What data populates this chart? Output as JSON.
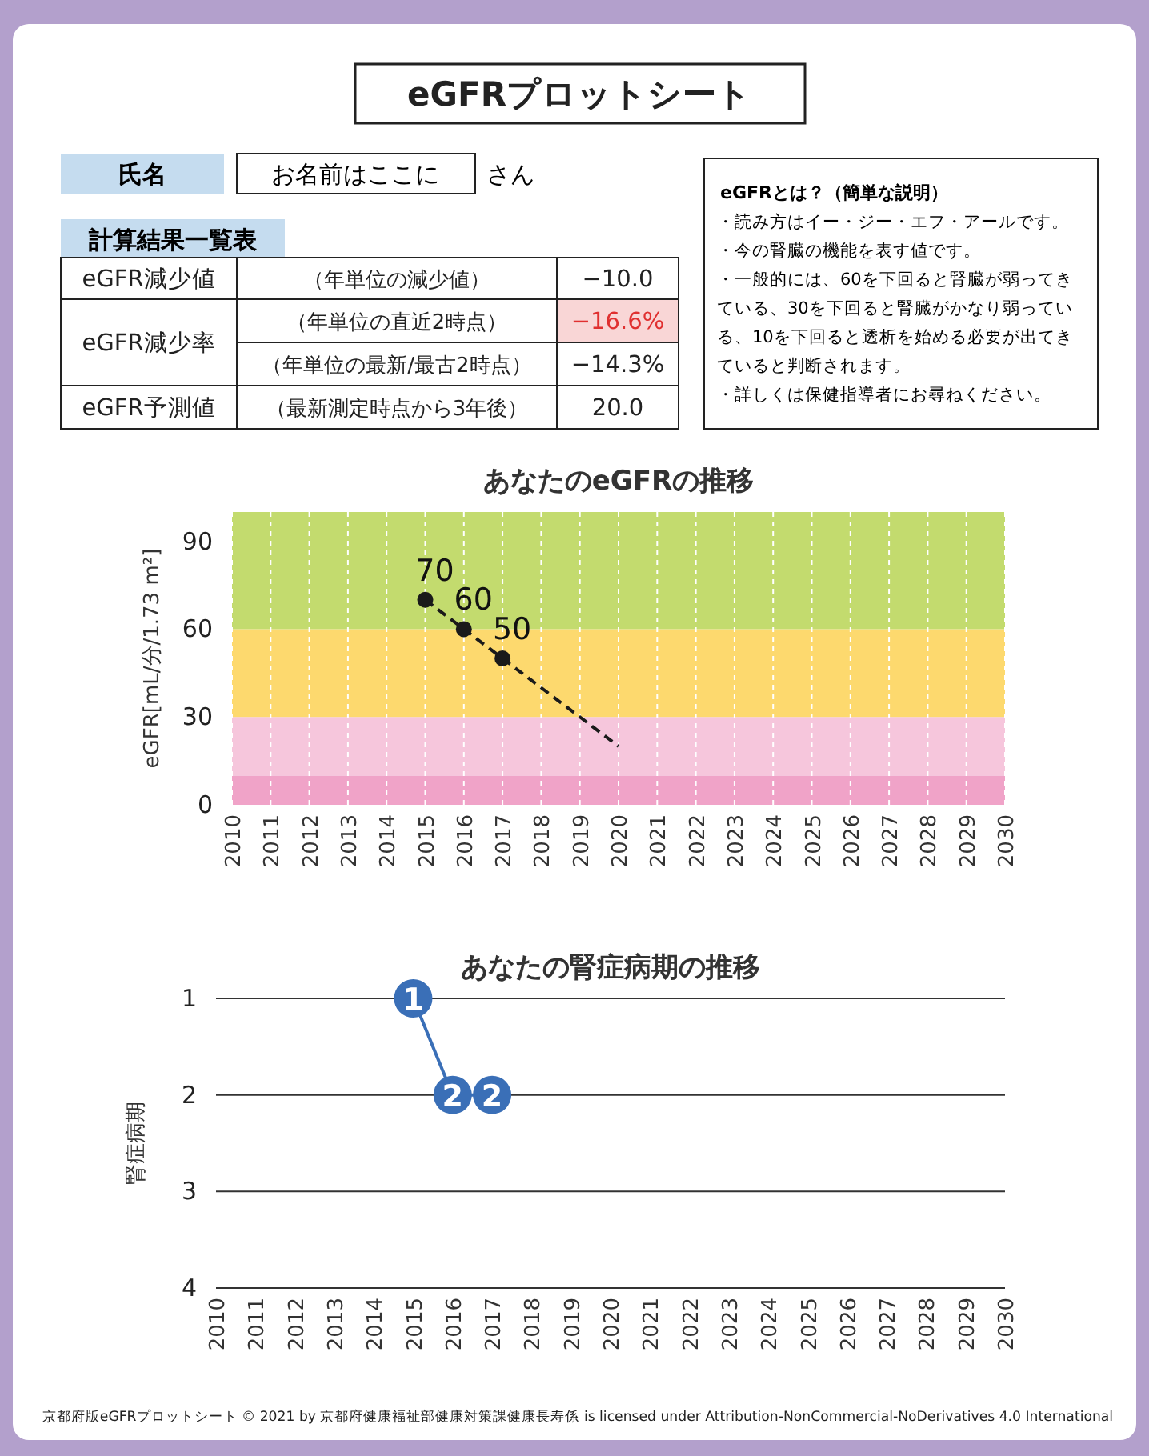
{
  "chart_data": [
    {
      "type": "other",
      "title": "eGFRプロットシート",
      "annotations": [
        "氏名",
        "お名前はここに",
        "さん",
        "計算結果一覧表",
        "eGFR減少値",
        "（年単位の減少値）",
        "−10.0",
        "eGFR減少率",
        "（年単位の直近2時点）",
        "−16.6%",
        "（年単位の最新/最古2時点）",
        "−14.3%",
        "eGFR予測値",
        "（最新測定時点から3年後）",
        "20.0",
        "eGFRとは？（簡単な説明）",
        "・読み方はイー・ジー・エフ・アールです。",
        "・今の腎臓の機能を表す値です。",
        "・一般的には、60を下回ると腎臓が弱ってきている、30を下回ると腎臓がかなり弱っている、10を下回ると透析を始める必要が出てきていると判断されます。",
        "・詳しくは保健指導者にお尋ねください。",
        "京都府版eGFRプロットシート © 2021 by 京都府健康福祉部健康対策課健康長寿係 is licensed under Attribution-NonCommercial-NoDerivatives 4.0 International"
      ]
    },
    {
      "type": "line",
      "title": "あなたのeGFRの推移",
      "ylabel": "eGFR[mL/分/1.73 m²]",
      "line_style": "dashed",
      "series": [
        {
          "x": [
            2015,
            2016,
            2017
          ],
          "values": [
            70,
            60,
            50
          ],
          "color": "#1a1a1a",
          "marker": "circle",
          "value_labels": [
            "70",
            "60",
            "50"
          ]
        },
        {
          "x": [
            2017,
            2020
          ],
          "values": [
            50,
            20
          ],
          "color": "#1a1a1a",
          "marker": "none"
        }
      ],
      "xlim": [
        2010,
        2030
      ],
      "xticks": [
        2010,
        2011,
        2012,
        2013,
        2014,
        2015,
        2016,
        2017,
        2018,
        2019,
        2020,
        2021,
        2022,
        2023,
        2024,
        2025,
        2026,
        2027,
        2028,
        2029,
        2030
      ],
      "ylim": [
        0,
        100
      ],
      "yticks": [
        0,
        30,
        60,
        90
      ],
      "grid": "x",
      "bands": [
        {
          "axis": "y",
          "from": 0,
          "to": 10,
          "color": "#f0a3c8"
        },
        {
          "axis": "y",
          "from": 10,
          "to": 30,
          "color": "#f6c6dc"
        },
        {
          "axis": "y",
          "from": 30,
          "to": 60,
          "color": "#fdd96e"
        },
        {
          "axis": "y",
          "from": 60,
          "to": 100,
          "color": "#c3db6e"
        }
      ]
    },
    {
      "type": "line",
      "title": "あなたの腎症病期の推移",
      "ylabel": "腎症病期",
      "x": [
        2015,
        2016,
        2017
      ],
      "values": [
        1,
        2,
        2
      ],
      "color": "#3a6fb7",
      "marker": "circle",
      "line_style": "solid",
      "data_labels": true,
      "xlim": [
        2010,
        2030
      ],
      "xticks": [
        2010,
        2011,
        2012,
        2013,
        2014,
        2015,
        2016,
        2017,
        2018,
        2019,
        2020,
        2021,
        2022,
        2023,
        2024,
        2025,
        2026,
        2027,
        2028,
        2029,
        2030
      ],
      "ylim": [
        4,
        1
      ],
      "yticks": [
        1,
        2,
        3,
        4
      ],
      "grid": "y"
    }
  ]
}
